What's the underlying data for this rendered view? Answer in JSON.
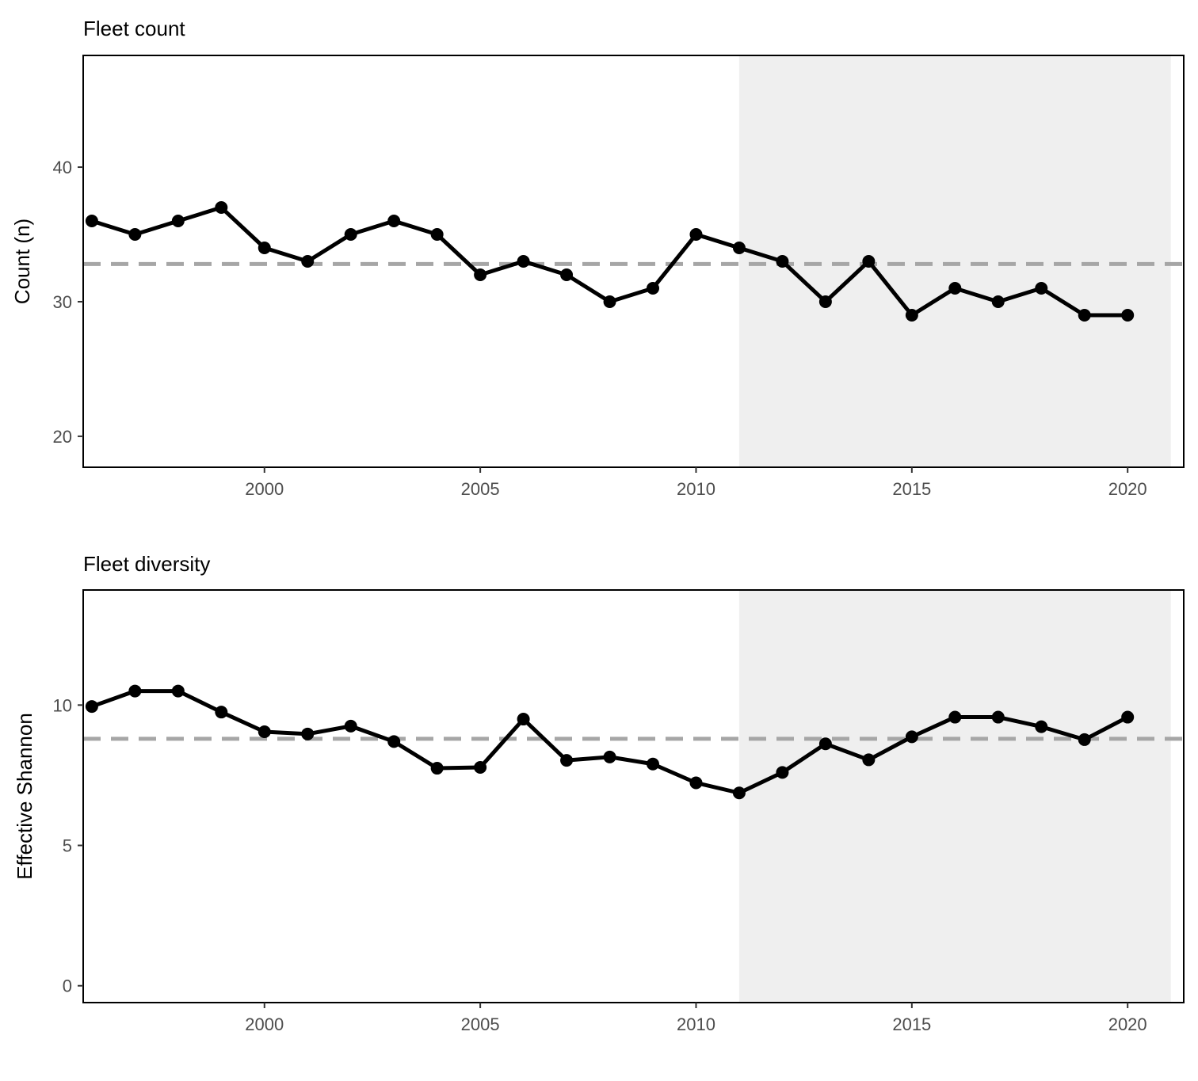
{
  "chart_data": [
    {
      "type": "line",
      "title": "Fleet count",
      "xlabel": "",
      "ylabel": "Count (n)",
      "xlim": [
        1995.8,
        2021.3
      ],
      "ylim": [
        17.7,
        48.3
      ],
      "xticks": [
        2000,
        2005,
        2010,
        2015,
        2020
      ],
      "xtick_labels": [
        "2000",
        "2005",
        "2010",
        "2015",
        "2020"
      ],
      "yticks": [
        20,
        30,
        40
      ],
      "ytick_labels": [
        "20",
        "30",
        "40"
      ],
      "shaded_period": [
        2011,
        2021
      ],
      "reference_line": 32.8,
      "grid": false,
      "series": [
        {
          "x": [
            1996,
            1997,
            1998,
            1999,
            2000,
            2001,
            2002,
            2003,
            2004,
            2005,
            2006,
            2007,
            2008,
            2009,
            2010,
            2011,
            2012,
            2013,
            2014,
            2015,
            2016,
            2017,
            2018,
            2019,
            2020
          ],
          "values": [
            36,
            35,
            36,
            37,
            34,
            33,
            35,
            36,
            35,
            32,
            33,
            32,
            30,
            31,
            35,
            34,
            33,
            30,
            33,
            29,
            31,
            30,
            31,
            29,
            29
          ]
        }
      ],
      "colors": {
        "line": "#000000",
        "reference": "#a6a6a6",
        "shade": "#efefef"
      }
    },
    {
      "type": "line",
      "title": "Fleet diversity",
      "xlabel": "",
      "ylabel": "Effective Shannon",
      "xlim": [
        1995.8,
        2021.3
      ],
      "ylim": [
        -0.6,
        14.1
      ],
      "xticks": [
        2000,
        2005,
        2010,
        2015,
        2020
      ],
      "xtick_labels": [
        "2000",
        "2005",
        "2010",
        "2015",
        "2020"
      ],
      "yticks": [
        0,
        5,
        10
      ],
      "ytick_labels": [
        "0",
        "5",
        "10"
      ],
      "shaded_period": [
        2011,
        2021
      ],
      "reference_line": 8.8,
      "grid": false,
      "series": [
        {
          "x": [
            1996,
            1997,
            1998,
            1999,
            2000,
            2001,
            2002,
            2003,
            2004,
            2005,
            2006,
            2007,
            2008,
            2009,
            2010,
            2011,
            2012,
            2013,
            2014,
            2015,
            2016,
            2017,
            2018,
            2019,
            2020
          ],
          "values": [
            9.95,
            10.5,
            10.5,
            9.75,
            9.05,
            8.97,
            9.25,
            8.7,
            7.75,
            7.78,
            9.5,
            8.03,
            8.15,
            7.9,
            7.23,
            6.87,
            7.6,
            8.62,
            8.05,
            8.87,
            9.57,
            9.57,
            9.23,
            8.77,
            9.57
          ]
        }
      ],
      "colors": {
        "line": "#000000",
        "reference": "#a6a6a6",
        "shade": "#efefef"
      }
    }
  ]
}
